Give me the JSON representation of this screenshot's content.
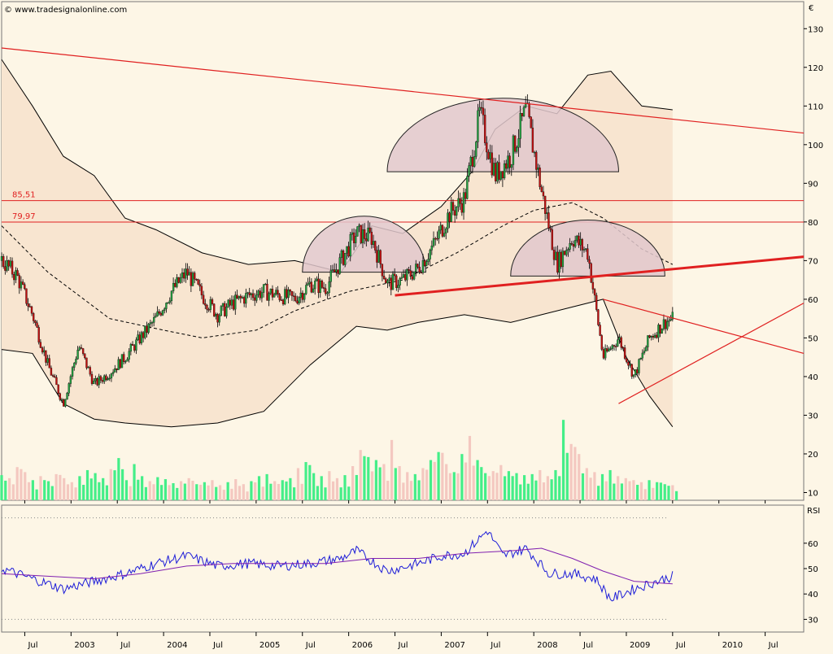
{
  "watermark": "© www.tradesignalonline.com",
  "currency_label": "€",
  "rsi_label": "RSI",
  "colors": {
    "background": "#fdf6e6",
    "band_fill": "#f8e5d0",
    "pattern_fill": "#e2c8cc",
    "red": "#e02020",
    "candle_up": "#22a040",
    "candle_down": "#c01010",
    "volume_up": "#44ee88",
    "volume_down": "#f4c8c0",
    "rsi_line": "#1c1cd8",
    "rsi_ma": "#8020b0"
  },
  "chart_data": [
    {
      "type": "candlestick",
      "x_ticks": [
        "Jul",
        "2003",
        "Jul",
        "2004",
        "Jul",
        "2005",
        "Jul",
        "2006",
        "Jul",
        "2007",
        "Jul",
        "2008",
        "Jul",
        "2009",
        "Jul",
        "2010",
        "Jul"
      ],
      "x_range": [
        "2002-04",
        "2010-12"
      ],
      "y_ticks": [
        10,
        20,
        30,
        40,
        50,
        60,
        70,
        80,
        90,
        100,
        110,
        120,
        130
      ],
      "ylim": [
        8,
        137
      ],
      "price_series": [
        [
          "2002-04",
          70
        ],
        [
          "2002-06",
          66
        ],
        [
          "2002-08",
          56
        ],
        [
          "2002-10",
          43
        ],
        [
          "2002-12",
          33
        ],
        [
          "2003-02",
          48
        ],
        [
          "2003-04",
          38
        ],
        [
          "2003-06",
          41
        ],
        [
          "2003-08",
          45
        ],
        [
          "2003-10",
          50
        ],
        [
          "2003-12",
          55
        ],
        [
          "2004-02",
          62
        ],
        [
          "2004-04",
          67
        ],
        [
          "2004-06",
          61
        ],
        [
          "2004-08",
          56
        ],
        [
          "2004-10",
          59
        ],
        [
          "2004-12",
          61
        ],
        [
          "2005-02",
          62
        ],
        [
          "2005-04",
          61
        ],
        [
          "2005-06",
          60
        ],
        [
          "2005-08",
          64
        ],
        [
          "2005-10",
          63
        ],
        [
          "2005-12",
          70
        ],
        [
          "2006-02",
          77
        ],
        [
          "2006-04",
          76
        ],
        [
          "2006-06",
          64
        ],
        [
          "2006-08",
          65
        ],
        [
          "2006-10",
          68
        ],
        [
          "2006-12",
          74
        ],
        [
          "2007-02",
          82
        ],
        [
          "2007-04",
          86
        ],
        [
          "2007-06",
          108
        ],
        [
          "2007-08",
          92
        ],
        [
          "2007-10",
          97
        ],
        [
          "2007-12",
          109
        ],
        [
          "2008-02",
          88
        ],
        [
          "2008-04",
          69
        ],
        [
          "2008-06",
          76
        ],
        [
          "2008-08",
          72
        ],
        [
          "2008-10",
          45
        ],
        [
          "2008-12",
          50
        ],
        [
          "2009-02",
          40
        ],
        [
          "2009-04",
          50
        ],
        [
          "2009-06",
          54
        ],
        [
          "2009-07",
          55
        ]
      ],
      "upper_band": [
        [
          "2002-04",
          122
        ],
        [
          "2002-08",
          110
        ],
        [
          "2002-12",
          97
        ],
        [
          "2003-04",
          92
        ],
        [
          "2003-08",
          81
        ],
        [
          "2003-12",
          78
        ],
        [
          "2004-06",
          72
        ],
        [
          "2004-12",
          69
        ],
        [
          "2005-06",
          70
        ],
        [
          "2005-12",
          67
        ],
        [
          "2006-04",
          79
        ],
        [
          "2006-08",
          77
        ],
        [
          "2007-01",
          84
        ],
        [
          "2007-05",
          93
        ],
        [
          "2007-08",
          104
        ],
        [
          "2007-12",
          110
        ],
        [
          "2008-04",
          108
        ],
        [
          "2008-08",
          118
        ],
        [
          "2008-11",
          119
        ],
        [
          "2009-03",
          110
        ],
        [
          "2009-07",
          109
        ]
      ],
      "lower_band": [
        [
          "2002-04",
          47
        ],
        [
          "2002-08",
          46
        ],
        [
          "2002-12",
          33
        ],
        [
          "2003-04",
          29
        ],
        [
          "2003-08",
          28
        ],
        [
          "2004-02",
          27
        ],
        [
          "2004-08",
          28
        ],
        [
          "2005-02",
          31
        ],
        [
          "2005-08",
          43
        ],
        [
          "2006-02",
          53
        ],
        [
          "2006-06",
          52
        ],
        [
          "2006-10",
          54
        ],
        [
          "2007-04",
          56
        ],
        [
          "2007-10",
          54
        ],
        [
          "2008-02",
          56
        ],
        [
          "2008-06",
          58
        ],
        [
          "2008-10",
          60
        ],
        [
          "2009-01",
          45
        ],
        [
          "2009-04",
          35
        ],
        [
          "2009-07",
          27
        ]
      ],
      "moving_average": [
        [
          "2002-04",
          79
        ],
        [
          "2002-10",
          67
        ],
        [
          "2003-06",
          55
        ],
        [
          "2004-01",
          52
        ],
        [
          "2004-06",
          50
        ],
        [
          "2005-01",
          52
        ],
        [
          "2005-06",
          57
        ],
        [
          "2006-01",
          62
        ],
        [
          "2006-08",
          65
        ],
        [
          "2007-03",
          72
        ],
        [
          "2007-09",
          79
        ],
        [
          "2008-01",
          83
        ],
        [
          "2008-06",
          85
        ],
        [
          "2008-10",
          81
        ],
        [
          "2009-03",
          73
        ],
        [
          "2009-07",
          69
        ]
      ],
      "horizontal_levels": [
        {
          "label": "85,51",
          "value": 85.51
        },
        {
          "label": "79,97",
          "value": 79.97
        }
      ],
      "trendlines": [
        {
          "from": [
            "2002-04",
            125
          ],
          "to": [
            "2010-12",
            103
          ],
          "weight": "thin"
        },
        {
          "from": [
            "2006-07",
            61
          ],
          "to": [
            "2010-12",
            71
          ],
          "weight": "thick"
        },
        {
          "from": [
            "2008-10",
            60
          ],
          "to": [
            "2010-12",
            46
          ],
          "weight": "thin"
        },
        {
          "from": [
            "2008-12",
            33
          ],
          "to": [
            "2010-12",
            59
          ],
          "weight": "thin"
        }
      ],
      "pattern_arcs": [
        {
          "x_center": "2006-03",
          "y_base": 67,
          "y_top": 81.5,
          "half_width_months": 8
        },
        {
          "x_center": "2007-09",
          "y_base": 93,
          "y_top": 112,
          "half_width_months": 15
        },
        {
          "x_center": "2008-08",
          "y_base": 66,
          "y_top": 80.5,
          "half_width_months": 10
        }
      ],
      "volume_series": [
        [
          0.25,
          0.22,
          0.33,
          0.28,
          0.2,
          0.24,
          0.19,
          0.26,
          0.22,
          0.18,
          0.24,
          0.3,
          0.27,
          0.22,
          0.31,
          0.42,
          0.2,
          0.36,
          0.24,
          0.19,
          0.23,
          0.21,
          0.17,
          0.19,
          0.22,
          0.16,
          0.18,
          0.2,
          0.15,
          0.18,
          0.21,
          0.16,
          0.19,
          0.24,
          0.26,
          0.19,
          0.2,
          0.22,
          0.32,
          0.38,
          0.27,
          0.24,
          0.29,
          0.22,
          0.25,
          0.34,
          0.5,
          0.43,
          0.4,
          0.36,
          0.6,
          0.34,
          0.28,
          0.26,
          0.32,
          0.4,
          0.48,
          0.36,
          0.28,
          0.46,
          0.64,
          0.4,
          0.27,
          0.29,
          0.35,
          0.29,
          0.27,
          0.25,
          0.26,
          0.3,
          0.24,
          0.3,
          0.8,
          0.56,
          0.46,
          0.32,
          0.28,
          0.26,
          0.3,
          0.24,
          0.22,
          0.2,
          0.18,
          0.2,
          0.18,
          0.16,
          0.15
        ]
      ]
    },
    {
      "type": "line",
      "label": "RSI",
      "y_ticks": [
        30,
        40,
        50,
        60
      ],
      "ylim": [
        25,
        75
      ],
      "dotted_levels": [
        70,
        30
      ],
      "rsi_series": [
        [
          "2002-04",
          50
        ],
        [
          "2002-08",
          46
        ],
        [
          "2002-12",
          42
        ],
        [
          "2003-04",
          45
        ],
        [
          "2003-08",
          48
        ],
        [
          "2003-12",
          52
        ],
        [
          "2004-04",
          55
        ],
        [
          "2004-08",
          51
        ],
        [
          "2004-12",
          52
        ],
        [
          "2005-04",
          51
        ],
        [
          "2005-08",
          52
        ],
        [
          "2005-12",
          54
        ],
        [
          "2006-02",
          57
        ],
        [
          "2006-06",
          49
        ],
        [
          "2006-10",
          52
        ],
        [
          "2007-01",
          55
        ],
        [
          "2007-04",
          56
        ],
        [
          "2007-07",
          65
        ],
        [
          "2007-09",
          55
        ],
        [
          "2007-12",
          58
        ],
        [
          "2008-03",
          48
        ],
        [
          "2008-06",
          48
        ],
        [
          "2008-09",
          46
        ],
        [
          "2008-11",
          38
        ],
        [
          "2009-02",
          42
        ],
        [
          "2009-05",
          45
        ],
        [
          "2009-07",
          47
        ]
      ],
      "rsi_ma_series": [
        [
          "2002-04",
          48
        ],
        [
          "2002-10",
          47
        ],
        [
          "2003-04",
          46
        ],
        [
          "2003-10",
          48
        ],
        [
          "2004-04",
          51
        ],
        [
          "2004-10",
          52
        ],
        [
          "2005-04",
          52
        ],
        [
          "2005-10",
          52
        ],
        [
          "2006-04",
          54
        ],
        [
          "2006-10",
          54
        ],
        [
          "2007-04",
          56
        ],
        [
          "2007-10",
          57
        ],
        [
          "2008-02",
          58
        ],
        [
          "2008-06",
          54
        ],
        [
          "2008-10",
          49
        ],
        [
          "2009-02",
          45
        ],
        [
          "2009-07",
          44
        ]
      ]
    }
  ]
}
